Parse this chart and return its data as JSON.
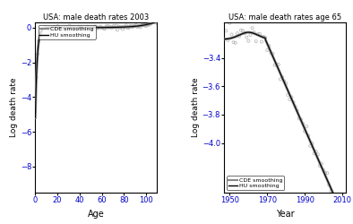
{
  "panel1": {
    "title": "USA: male death rates 2003",
    "xlabel": "Age",
    "ylabel": "Log death rate",
    "xlim": [
      0,
      110
    ],
    "ylim": [
      -9.5,
      0.3
    ],
    "yticks": [
      0,
      -2,
      -4,
      -6,
      -8
    ],
    "xticks": [
      0,
      20,
      40,
      60,
      80,
      100
    ],
    "legend_loc": "upper left",
    "legend_entries": [
      "CDE smoothing",
      "HU smoothing"
    ]
  },
  "panel2": {
    "title": "USA: male death rates age 65",
    "xlabel": "Year",
    "ylabel": "Log death rate",
    "xlim": [
      1947,
      2012
    ],
    "ylim": [
      -4.35,
      -3.15
    ],
    "yticks": [
      -3.4,
      -3.6,
      -3.8,
      -4.0
    ],
    "xticks": [
      1950,
      1970,
      1990,
      2010
    ],
    "legend_loc": "lower left",
    "legend_entries": [
      "CDE smoothing",
      "HU smoothing"
    ]
  },
  "scatter_color": "#b0b0b0",
  "line_cde": "#888888",
  "line_hu": "#000000",
  "tick_color": "#0000cc",
  "bg_color": "#ffffff"
}
